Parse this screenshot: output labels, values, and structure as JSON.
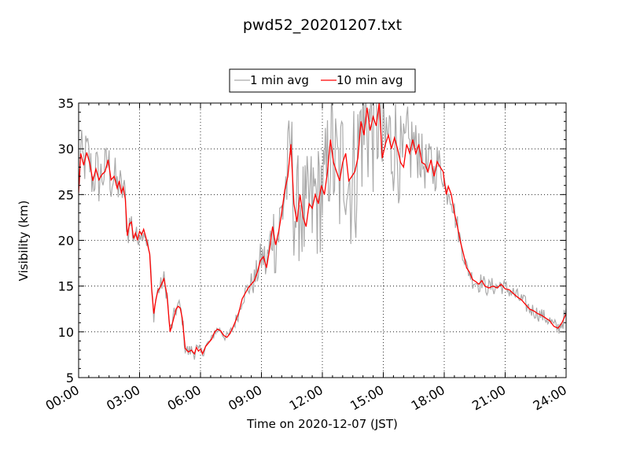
{
  "chart_data": {
    "type": "line",
    "title": "pwd52_20201207.txt",
    "xlabel": "Time on 2020-12-07 (JST)",
    "ylabel": "Visibility (km)",
    "xlim": [
      0,
      24
    ],
    "ylim": [
      5,
      35
    ],
    "x_ticks": [
      {
        "value": 0,
        "label": "00:00"
      },
      {
        "value": 3,
        "label": "03:00"
      },
      {
        "value": 6,
        "label": "06:00"
      },
      {
        "value": 9,
        "label": "09:00"
      },
      {
        "value": 12,
        "label": "12:00"
      },
      {
        "value": 15,
        "label": "15:00"
      },
      {
        "value": 18,
        "label": "18:00"
      },
      {
        "value": 21,
        "label": "21:00"
      },
      {
        "value": 24,
        "label": "24:00"
      }
    ],
    "y_ticks": [
      {
        "value": 5,
        "label": "5"
      },
      {
        "value": 10,
        "label": "10"
      },
      {
        "value": 15,
        "label": "15"
      },
      {
        "value": 20,
        "label": "20"
      },
      {
        "value": 25,
        "label": "25"
      },
      {
        "value": 30,
        "label": "30"
      },
      {
        "value": 35,
        "label": "35"
      }
    ],
    "grid": true,
    "legend_position": "top-center",
    "series": [
      {
        "name": "1 min avg",
        "color": "#aaaaaa",
        "noise_profile": [
          [
            0,
            3
          ],
          [
            1,
            3
          ],
          [
            2,
            2.5
          ],
          [
            2.3,
            2
          ],
          [
            3,
            1
          ],
          [
            4,
            1
          ],
          [
            5,
            1
          ],
          [
            6,
            0.5
          ],
          [
            7,
            0.5
          ],
          [
            8,
            0.8
          ],
          [
            9,
            2
          ],
          [
            10,
            5
          ],
          [
            11,
            7
          ],
          [
            12,
            7
          ],
          [
            13,
            8
          ],
          [
            14.5,
            9
          ],
          [
            15.5,
            6
          ],
          [
            17,
            3
          ],
          [
            18,
            2
          ],
          [
            19,
            1
          ],
          [
            20,
            1
          ],
          [
            21,
            1
          ],
          [
            23,
            0.8
          ],
          [
            24,
            1
          ]
        ]
      },
      {
        "name": "10 min avg",
        "color": "#ff0000",
        "x": [
          0,
          0.1,
          0.25,
          0.4,
          0.55,
          0.7,
          0.85,
          1.0,
          1.15,
          1.3,
          1.45,
          1.6,
          1.75,
          1.9,
          2.0,
          2.1,
          2.2,
          2.3,
          2.4,
          2.5,
          2.6,
          2.7,
          2.8,
          2.9,
          3.0,
          3.1,
          3.2,
          3.3,
          3.4,
          3.5,
          3.6,
          3.7,
          3.8,
          3.9,
          4.0,
          4.1,
          4.2,
          4.35,
          4.5,
          4.65,
          4.8,
          4.9,
          5.0,
          5.1,
          5.25,
          5.4,
          5.55,
          5.7,
          5.8,
          5.9,
          6.0,
          6.1,
          6.25,
          6.4,
          6.55,
          6.7,
          6.85,
          7.0,
          7.15,
          7.3,
          7.45,
          7.6,
          7.75,
          7.9,
          8.05,
          8.2,
          8.35,
          8.5,
          8.65,
          8.8,
          8.95,
          9.1,
          9.25,
          9.4,
          9.55,
          9.7,
          9.85,
          10.0,
          10.15,
          10.3,
          10.45,
          10.6,
          10.75,
          10.9,
          11.05,
          11.2,
          11.35,
          11.5,
          11.65,
          11.8,
          11.95,
          12.1,
          12.25,
          12.4,
          12.55,
          12.7,
          12.85,
          13.0,
          13.15,
          13.3,
          13.45,
          13.6,
          13.75,
          13.9,
          14.05,
          14.2,
          14.35,
          14.5,
          14.65,
          14.8,
          14.95,
          15.1,
          15.25,
          15.4,
          15.55,
          15.7,
          15.85,
          16.0,
          16.15,
          16.3,
          16.45,
          16.6,
          16.75,
          16.9,
          17.05,
          17.2,
          17.35,
          17.5,
          17.65,
          17.8,
          17.95,
          18.0,
          18.1,
          18.2,
          18.35,
          18.5,
          18.65,
          18.8,
          18.95,
          19.1,
          19.25,
          19.4,
          19.55,
          19.7,
          19.85,
          20.0,
          20.2,
          20.4,
          20.6,
          20.8,
          21.0,
          21.2,
          21.4,
          21.6,
          21.8,
          22.0,
          22.2,
          22.4,
          22.6,
          22.8,
          23.0,
          23.2,
          23.4,
          23.6,
          23.8,
          24.0
        ],
        "y": [
          25.2,
          29.5,
          28.2,
          29.6,
          28.4,
          26.5,
          27.8,
          26.6,
          27.2,
          27.5,
          28.8,
          26.6,
          27.0,
          25.7,
          26.5,
          25.2,
          25.8,
          24.5,
          20.5,
          21.8,
          22.0,
          20.2,
          20.8,
          20.0,
          21.0,
          20.6,
          21.2,
          20.4,
          19.5,
          18.5,
          14.5,
          12.0,
          13.5,
          14.5,
          14.8,
          15.3,
          15.8,
          14.0,
          10.0,
          11.2,
          12.5,
          12.8,
          12.6,
          11.5,
          8.2,
          7.8,
          8.0,
          7.6,
          8.3,
          7.9,
          8.1,
          7.6,
          8.4,
          8.8,
          9.2,
          10.0,
          10.3,
          10.1,
          9.6,
          9.4,
          9.8,
          10.5,
          11.3,
          12.2,
          13.6,
          14.2,
          14.8,
          15.2,
          15.6,
          16.5,
          17.8,
          18.2,
          17.0,
          19.0,
          21.5,
          19.5,
          21.0,
          23.0,
          25.5,
          27.0,
          30.5,
          24.0,
          22.0,
          25.0,
          22.5,
          21.5,
          24.0,
          23.5,
          25.0,
          24.0,
          26.0,
          25.0,
          27.5,
          31.0,
          28.5,
          27.5,
          26.5,
          28.5,
          29.5,
          26.5,
          27.0,
          27.5,
          29.0,
          33.0,
          31.5,
          34.5,
          32.0,
          33.5,
          32.5,
          35.0,
          29.0,
          30.5,
          31.5,
          30.0,
          31.2,
          30.0,
          28.5,
          28.0,
          30.5,
          29.5,
          31.0,
          29.5,
          30.5,
          28.5,
          28.3,
          27.5,
          28.8,
          27.0,
          28.6,
          28.0,
          27.5,
          26.5,
          25.0,
          25.9,
          25.0,
          23.0,
          21.5,
          19.8,
          18.5,
          17.0,
          16.5,
          15.7,
          15.5,
          15.2,
          15.6,
          15.0,
          14.8,
          15.0,
          14.8,
          15.2,
          14.7,
          14.6,
          14.2,
          13.8,
          13.5,
          13.0,
          12.5,
          12.3,
          12.0,
          11.8,
          11.5,
          11.2,
          10.6,
          10.4,
          11.0,
          12.0
        ]
      }
    ]
  }
}
